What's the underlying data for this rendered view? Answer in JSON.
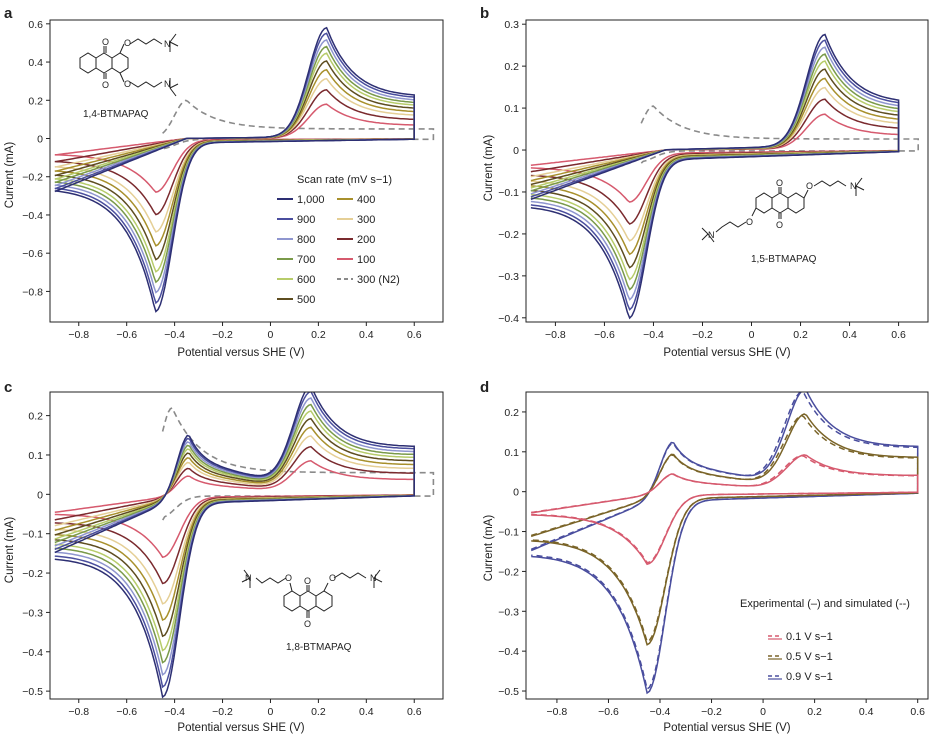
{
  "chart_data": [
    {
      "panel": "a",
      "type": "line",
      "molecule": "1,4-BTMAPAQ",
      "xlabel": "Potential versus SHE (V)",
      "ylabel": "Current (mA)",
      "xlim": [
        -0.92,
        0.72
      ],
      "ylim": [
        -0.96,
        0.62
      ],
      "xticks": [
        "−0.8",
        "−0.6",
        "−0.4",
        "−0.2",
        "0",
        "0.2",
        "0.4",
        "0.6"
      ],
      "yticks": [
        "0.6",
        "0.4",
        "0.2",
        "0",
        "−0.2",
        "−0.4",
        "−0.6",
        "−0.8"
      ],
      "legend_title": "Scan rate (mV s−1)",
      "legend_labels": [
        "1,000",
        "900",
        "800",
        "700",
        "600",
        "500",
        "400",
        "300",
        "200",
        "100",
        "300 (N2)"
      ],
      "params": {
        "vmin": -0.9,
        "vmax": 0.6,
        "ec": -0.48,
        "ea": 0.235,
        "cathodic_peak": -0.88,
        "anodic_peak": 0.57,
        "start": -0.27,
        "end_high": 0.16,
        "ref_peak": 0.2,
        "ref_peak_e": -0.35
      },
      "series": [
        {
          "name": "1,000",
          "color": "#2d2f73",
          "scale": 1.0
        },
        {
          "name": "900",
          "color": "#4a4e9e",
          "scale": 0.95
        },
        {
          "name": "800",
          "color": "#8f96cf",
          "scale": 0.89
        },
        {
          "name": "700",
          "color": "#7a9a4a",
          "scale": 0.83
        },
        {
          "name": "600",
          "color": "#b7cc6a",
          "scale": 0.77
        },
        {
          "name": "500",
          "color": "#5e4d20",
          "scale": 0.7
        },
        {
          "name": "400",
          "color": "#a8902c",
          "scale": 0.62
        },
        {
          "name": "300",
          "color": "#e5cf96",
          "scale": 0.54
        },
        {
          "name": "200",
          "color": "#7a2a2e",
          "scale": 0.44
        },
        {
          "name": "100",
          "color": "#d65a6e",
          "scale": 0.31
        },
        {
          "name": "300 (N2)",
          "color": "#8a8a8a",
          "scale": 0.54,
          "dashed": true
        }
      ]
    },
    {
      "panel": "b",
      "type": "line",
      "molecule": "1,5-BTMAPAQ",
      "xlabel": "Potential versus SHE (V)",
      "ylabel": "Current (mA)",
      "xlim": [
        -0.92,
        0.72
      ],
      "ylim": [
        -0.41,
        0.31
      ],
      "xticks": [
        "−0.8",
        "−0.6",
        "−0.4",
        "−0.2",
        "0",
        "0.2",
        "0.4",
        "0.6"
      ],
      "yticks": [
        "0.3",
        "0.2",
        "0.1",
        "0",
        "−0.1",
        "−0.2",
        "−0.3",
        "−0.4"
      ],
      "params": {
        "vmin": -0.9,
        "vmax": 0.6,
        "ec": -0.5,
        "ea": 0.3,
        "cathodic_peak": -0.375,
        "anodic_peak": 0.265,
        "start": -0.11,
        "end_high": 0.14,
        "ref_peak": 0.105,
        "ref_peak_e": -0.4
      },
      "series": [
        {
          "name": "1,000",
          "color": "#2d2f73",
          "scale": 1.0
        },
        {
          "name": "900",
          "color": "#4a4e9e",
          "scale": 0.95
        },
        {
          "name": "800",
          "color": "#8f96cf",
          "scale": 0.89
        },
        {
          "name": "700",
          "color": "#7a9a4a",
          "scale": 0.83
        },
        {
          "name": "600",
          "color": "#b7cc6a",
          "scale": 0.77
        },
        {
          "name": "500",
          "color": "#5e4d20",
          "scale": 0.7
        },
        {
          "name": "400",
          "color": "#a8902c",
          "scale": 0.62
        },
        {
          "name": "300",
          "color": "#e5cf96",
          "scale": 0.54
        },
        {
          "name": "200",
          "color": "#7a2a2e",
          "scale": 0.44
        },
        {
          "name": "100",
          "color": "#d65a6e",
          "scale": 0.31
        },
        {
          "name": "300 (N2)",
          "color": "#8a8a8a",
          "scale": 0.54,
          "dashed": true
        }
      ]
    },
    {
      "panel": "c",
      "type": "line",
      "molecule": "1,8-BTMAPAQ",
      "xlabel": "Potential versus SHE (V)",
      "ylabel": "Current (mA)",
      "xlim": [
        -0.92,
        0.72
      ],
      "ylim": [
        -0.52,
        0.26
      ],
      "xticks": [
        "−0.8",
        "−0.6",
        "−0.4",
        "−0.2",
        "0",
        "0.2",
        "0.4",
        "0.6"
      ],
      "yticks": [
        "0.2",
        "0.1",
        "0",
        "−0.1",
        "−0.2",
        "−0.3",
        "−0.4",
        "−0.5"
      ],
      "params": {
        "vmin": -0.9,
        "vmax": 0.6,
        "ec": -0.45,
        "ea": 0.17,
        "ea2": -0.34,
        "cathodic_peak": -0.49,
        "anodic_peak": 0.25,
        "anodic_peak2": 0.15,
        "start": -0.14,
        "end_high": 0.12,
        "ref_peak": 0.22,
        "ref_peak_e": -0.41
      },
      "series": [
        {
          "name": "1,000",
          "color": "#2d2f73",
          "scale": 1.0
        },
        {
          "name": "900",
          "color": "#4a4e9e",
          "scale": 0.95
        },
        {
          "name": "800",
          "color": "#8f96cf",
          "scale": 0.89
        },
        {
          "name": "700",
          "color": "#7a9a4a",
          "scale": 0.83
        },
        {
          "name": "600",
          "color": "#b7cc6a",
          "scale": 0.77
        },
        {
          "name": "500",
          "color": "#5e4d20",
          "scale": 0.7
        },
        {
          "name": "400",
          "color": "#a8902c",
          "scale": 0.62
        },
        {
          "name": "300",
          "color": "#e5cf96",
          "scale": 0.54
        },
        {
          "name": "200",
          "color": "#7a2a2e",
          "scale": 0.44
        },
        {
          "name": "100",
          "color": "#d65a6e",
          "scale": 0.31
        },
        {
          "name": "300 (N2)",
          "color": "#8a8a8a",
          "scale": 0.54,
          "dashed": true
        }
      ]
    },
    {
      "panel": "d",
      "type": "line",
      "xlabel": "Potential versus SHE (V)",
      "ylabel": "Current (mA)",
      "xlim": [
        -0.92,
        0.64
      ],
      "ylim": [
        -0.52,
        0.25
      ],
      "xticks": [
        "−0.8",
        "−0.6",
        "−0.4",
        "−0.2",
        "0",
        "0.2",
        "0.4",
        "0.6"
      ],
      "yticks": [
        "0.2",
        "0.1",
        "0",
        "−0.1",
        "−0.2",
        "−0.3",
        "−0.4",
        "−0.5"
      ],
      "legend_title": "Experimental (–) and simulated (--)",
      "legend_labels": [
        "0.1 V s−1",
        "0.5 V s−1",
        "0.9 V s−1"
      ],
      "params": {
        "vmin": -0.9,
        "vmax": 0.6,
        "ec": -0.45,
        "ea": 0.165,
        "ea2": -0.35,
        "cathodic_peak": -0.48,
        "anodic_peak": 0.235,
        "anodic_peak2": 0.125,
        "start": -0.14,
        "end_high": 0.11
      },
      "series": [
        {
          "name": "0.1 V s−1",
          "color": "#d65a6e",
          "scale": 0.36
        },
        {
          "name": "0.5 V s−1",
          "color": "#7a6428",
          "scale": 0.76
        },
        {
          "name": "0.9 V s−1",
          "color": "#4a4e9e",
          "scale": 1.0
        }
      ]
    }
  ]
}
